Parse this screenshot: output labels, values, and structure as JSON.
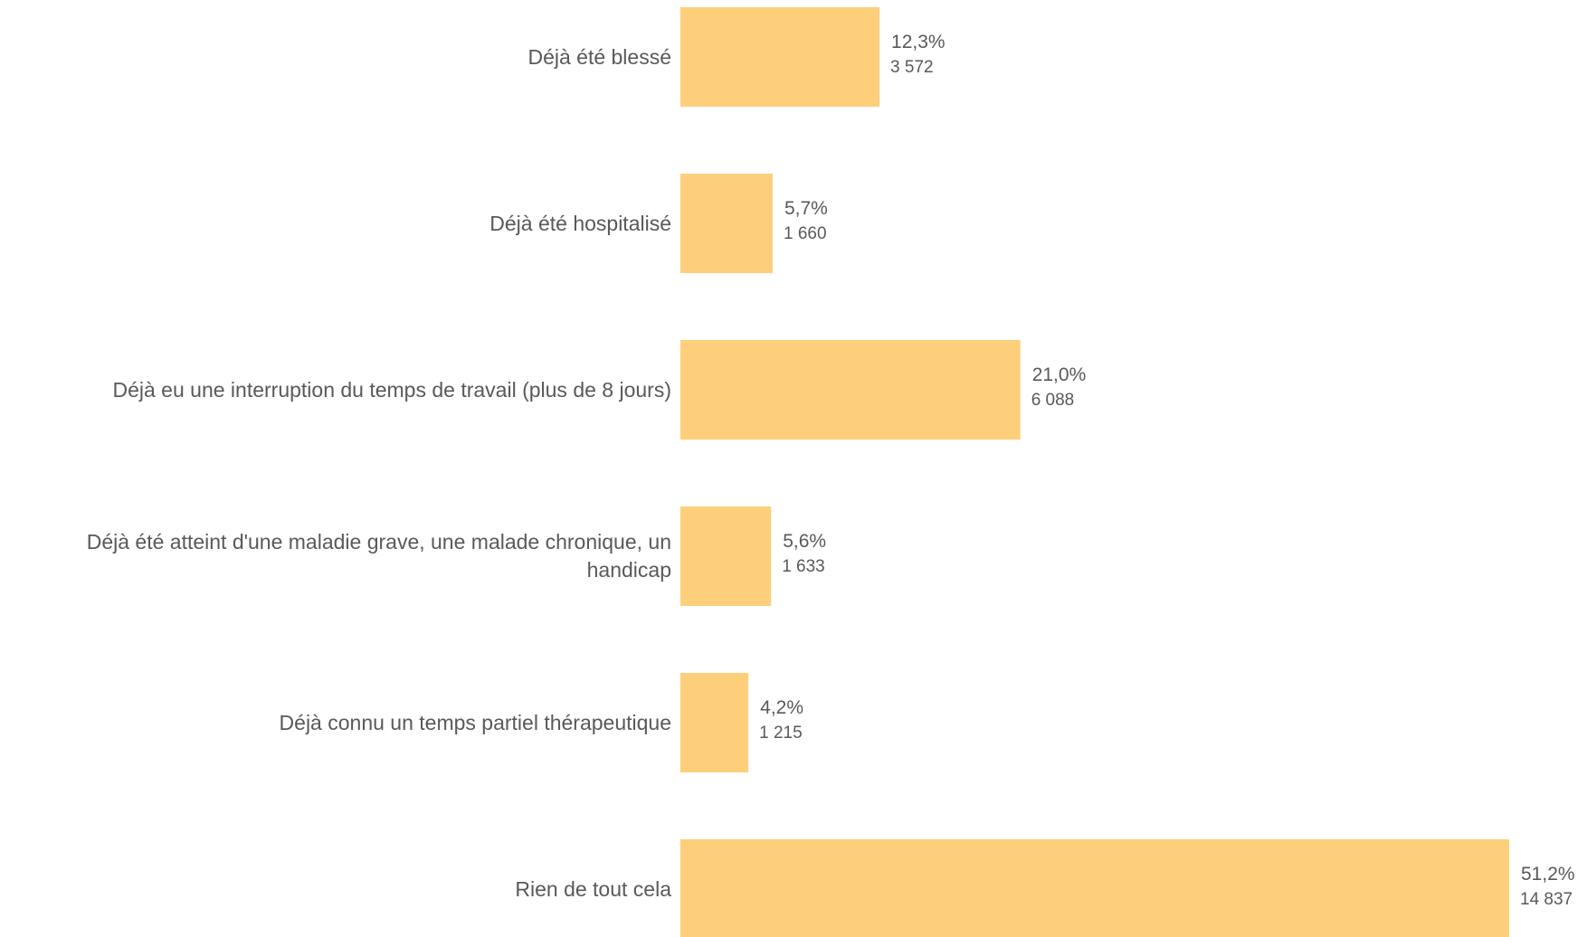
{
  "chart_data": {
    "type": "bar",
    "orientation": "horizontal",
    "color": "#fecf7b",
    "categories": [
      "Déjà été blessé",
      "Déjà été hospitalisé",
      "Déjà eu une interruption du temps de travail (plus de 8 jours)",
      "Déjà été atteint d'une maladie grave, une malade chronique, un handicap",
      "Déjà connu un temps partiel thérapeutique",
      "Rien de tout cela"
    ],
    "values": [
      12.3,
      5.7,
      21.0,
      5.6,
      4.2,
      51.2
    ],
    "value_labels": [
      "12,3%",
      "5,7%",
      "21,0%",
      "5,6%",
      "4,2%",
      "51,2%"
    ],
    "counts": [
      3572,
      1660,
      6088,
      1633,
      1215,
      14837
    ],
    "count_labels": [
      "3 572",
      "1 660",
      "6 088",
      "1 633",
      "1 215",
      "14 837"
    ]
  }
}
